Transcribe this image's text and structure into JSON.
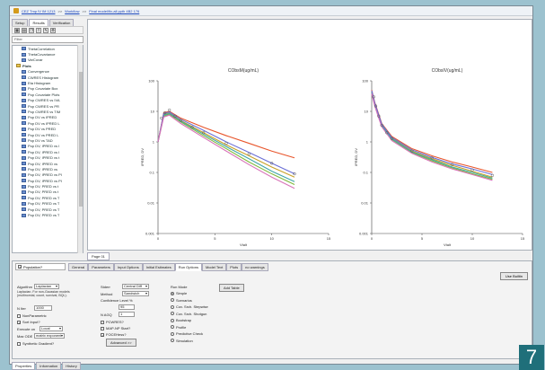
{
  "breadcrumb": [
    "CEZ Tmp IV IM 1213",
    "Workflow",
    "Final model/fiv-all ppth 4B2 176"
  ],
  "top_tabs": [
    "Setup",
    "Results",
    "Verification"
  ],
  "filter_placeholder": "Filter",
  "tree": [
    {
      "label": "ThetaCorrelation",
      "section": false
    },
    {
      "label": "ThetaCovariance",
      "section": false
    },
    {
      "label": "VarCovar",
      "section": false
    },
    {
      "label": "Plots",
      "section": true
    },
    {
      "label": "Convergence",
      "section": false
    },
    {
      "label": "CWRES Histogram",
      "section": false
    },
    {
      "label": "Eta Histogram",
      "section": false
    },
    {
      "label": "Pop Covariate Box",
      "section": false
    },
    {
      "label": "Pop Covariate Plots",
      "section": false
    },
    {
      "label": "Pop CWRES vs IVA",
      "section": false
    },
    {
      "label": "Pop CWRES vs PR",
      "section": false
    },
    {
      "label": "Pop CWRES vs TIM",
      "section": false
    },
    {
      "label": "Pop DV vs IPRED",
      "section": false
    },
    {
      "label": "Pop DV vs IPRED L",
      "section": false
    },
    {
      "label": "Pop DV vs PRED",
      "section": false
    },
    {
      "label": "Pop DV vs PRED L",
      "section": false
    },
    {
      "label": "Pop DV vs TAD",
      "section": false
    },
    {
      "label": "Pop DV, IPRED vs I",
      "section": false
    },
    {
      "label": "Pop DV, IPRED vs I",
      "section": false
    },
    {
      "label": "Pop DV, IPRED vs t",
      "section": false
    },
    {
      "label": "Pop DV, IPRED vs",
      "section": false
    },
    {
      "label": "Pop DV, IPRED vs",
      "section": false
    },
    {
      "label": "Pop DV, IPRED vs PI",
      "section": false
    },
    {
      "label": "Pop DV, IPRED vs PI",
      "section": false
    },
    {
      "label": "Pop DV, PRED vs t",
      "section": false
    },
    {
      "label": "Pop DV, PRED vs t",
      "section": false
    },
    {
      "label": "Pop DV, PRED vs T",
      "section": false
    },
    {
      "label": "Pop DV, PRED vs T",
      "section": false
    },
    {
      "label": "Pop DV, PRED vs T",
      "section": false
    },
    {
      "label": "Pop DV, PRED vs T",
      "section": false
    }
  ],
  "page_tab": "Page 01",
  "chart_data": [
    {
      "type": "line",
      "title": "CObsM(ug/mL)",
      "xlabel": "Vtalt",
      "ylabel": "IPRED, DV",
      "y_scale": "log",
      "xlim": [
        0,
        15
      ],
      "ylim": [
        0.001,
        100
      ],
      "x_ticks": [
        "0",
        "5",
        "10",
        "15"
      ],
      "y_ticks": [
        "0.001",
        "0.01",
        "0.1",
        "1",
        "10",
        "100"
      ],
      "series": [
        {
          "color": "#e8552b",
          "x": [
            0,
            0.5,
            1,
            2,
            4,
            6,
            8,
            10,
            12
          ],
          "y": [
            1,
            9,
            10,
            6,
            3,
            1.6,
            0.9,
            0.5,
            0.3
          ]
        },
        {
          "color": "#c9a227",
          "x": [
            0,
            0.5,
            1,
            2,
            4,
            6,
            8,
            10,
            12
          ],
          "y": [
            1,
            8,
            9,
            5,
            2,
            0.8,
            0.35,
            0.15,
            0.07
          ]
        },
        {
          "color": "#7fb93d",
          "x": [
            0,
            0.5,
            1,
            2,
            4,
            6,
            8,
            10,
            12
          ],
          "y": [
            1,
            7,
            8,
            4.5,
            1.6,
            0.6,
            0.22,
            0.09,
            0.04
          ]
        },
        {
          "color": "#3fa6a6",
          "x": [
            0,
            0.5,
            1,
            2,
            4,
            6,
            8,
            10,
            12
          ],
          "y": [
            1,
            7.5,
            8.5,
            4.8,
            1.8,
            0.7,
            0.28,
            0.11,
            0.05
          ]
        },
        {
          "color": "#6b6fd6",
          "x": [
            0,
            0.5,
            1,
            2,
            4,
            6,
            8,
            10,
            12
          ],
          "y": [
            1,
            8.5,
            9.5,
            5.5,
            2.4,
            1.0,
            0.45,
            0.2,
            0.09
          ]
        },
        {
          "color": "#d873b8",
          "x": [
            0,
            0.5,
            1,
            2,
            4,
            6,
            8,
            10,
            12
          ],
          "y": [
            1,
            6.5,
            7.5,
            4.0,
            1.4,
            0.5,
            0.18,
            0.07,
            0.03
          ]
        }
      ],
      "points": [
        {
          "x": 0.3,
          "y": 6
        },
        {
          "x": 0.6,
          "y": 9
        },
        {
          "x": 1,
          "y": 11
        },
        {
          "x": 1.5,
          "y": 7
        },
        {
          "x": 2,
          "y": 5
        },
        {
          "x": 3,
          "y": 3
        },
        {
          "x": 4,
          "y": 2
        },
        {
          "x": 6,
          "y": 0.9
        },
        {
          "x": 8,
          "y": 0.4
        },
        {
          "x": 10,
          "y": 0.2
        },
        {
          "x": 12,
          "y": 0.09
        }
      ]
    },
    {
      "type": "line",
      "title": "CObsIV(ug/mL)",
      "xlabel": "Vtalt",
      "ylabel": "IPRED, DV",
      "y_scale": "log",
      "xlim": [
        0,
        15
      ],
      "ylim": [
        0.001,
        100
      ],
      "x_ticks": [
        "0",
        "5",
        "10",
        "15"
      ],
      "y_ticks": [
        "0.001",
        "0.01",
        "0.1",
        "1",
        "10",
        "100"
      ],
      "series": [
        {
          "color": "#e8552b",
          "x": [
            0,
            0.3,
            0.7,
            1,
            2,
            4,
            6,
            8,
            10,
            12
          ],
          "y": [
            50,
            20,
            8,
            4,
            1.5,
            0.6,
            0.35,
            0.22,
            0.15,
            0.1
          ]
        },
        {
          "color": "#c9a227",
          "x": [
            0,
            0.3,
            0.7,
            1,
            2,
            4,
            6,
            8,
            10,
            12
          ],
          "y": [
            45,
            18,
            7,
            3.6,
            1.3,
            0.5,
            0.28,
            0.17,
            0.11,
            0.07
          ]
        },
        {
          "color": "#7fb93d",
          "x": [
            0,
            0.3,
            0.7,
            1,
            2,
            4,
            6,
            8,
            10,
            12
          ],
          "y": [
            40,
            16,
            6.5,
            3.3,
            1.2,
            0.45,
            0.24,
            0.14,
            0.09,
            0.06
          ]
        },
        {
          "color": "#3fa6a6",
          "x": [
            0,
            0.3,
            0.7,
            1,
            2,
            4,
            6,
            8,
            10,
            12
          ],
          "y": [
            42,
            17,
            6.8,
            3.4,
            1.25,
            0.47,
            0.26,
            0.15,
            0.1,
            0.065
          ]
        },
        {
          "color": "#6b6fd6",
          "x": [
            0,
            0.3,
            0.7,
            1,
            2,
            4,
            6,
            8,
            10,
            12
          ],
          "y": [
            48,
            19,
            7.5,
            3.8,
            1.4,
            0.55,
            0.31,
            0.19,
            0.13,
            0.085
          ]
        },
        {
          "color": "#d873b8",
          "x": [
            0,
            0.3,
            0.7,
            1,
            2,
            4,
            6,
            8,
            10,
            12
          ],
          "y": [
            38,
            15,
            6,
            3.1,
            1.1,
            0.42,
            0.22,
            0.13,
            0.085,
            0.055
          ]
        }
      ],
      "points": [
        {
          "x": 0.2,
          "y": 30
        },
        {
          "x": 0.4,
          "y": 15
        },
        {
          "x": 0.7,
          "y": 7
        },
        {
          "x": 1,
          "y": 3.5
        },
        {
          "x": 1.5,
          "y": 2
        },
        {
          "x": 2,
          "y": 1.3
        },
        {
          "x": 4,
          "y": 0.5
        },
        {
          "x": 6,
          "y": 0.3
        },
        {
          "x": 8,
          "y": 0.18
        },
        {
          "x": 10,
          "y": 0.12
        },
        {
          "x": 12,
          "y": 0.08
        }
      ]
    }
  ],
  "bottom": {
    "population_label": "Population?",
    "tabs": [
      "General",
      "Parameters",
      "Input Options",
      "Initial Estimates",
      "Run Options",
      "Model Text",
      "Plots",
      "no warnings"
    ],
    "active_tab": "Run Options",
    "use_builtin": "Use Builtin",
    "algorithm_label": "Algorithm",
    "algorithm_value": "Laplacian",
    "algorithm_desc": "Laplacian. For non-Gaussian models (multinomial, count, survival, BQL).",
    "n_iter_label": "N Iter",
    "n_iter_value": "1000",
    "nonparametric_label": "NonParametric",
    "sort_input_label": "Sort Input?",
    "execute_on_label": "Execute on",
    "execute_on_value": "Local",
    "max_ode_label": "Max ODE",
    "max_ode_value": "matrix exponent",
    "synthetic_label": "Synthetic Gradient?",
    "stderr_label": "Stderr",
    "stderr_value": "Central Diff",
    "method_label": "Method",
    "method_value": "Sandwich",
    "confidence_label": "Confidence Level %",
    "confidence_value": "95",
    "nagq_label": "N AGQ",
    "nagq_value": "1",
    "pcwres_label": "PCWRES?",
    "map_np_label": "MAP-NP Start?",
    "foce_hess_label": "FOCEHess?",
    "advanced_label": "Advanced >>",
    "run_mode_label": "Run Mode",
    "run_modes": [
      "Simple",
      "Scenarios",
      "Cov. Srch. Stepwise",
      "Cov. Srch. Shotgun",
      "Bootstrap",
      "Profile",
      "Predictive Check",
      "Simulation"
    ],
    "run_mode_selected": "Simple",
    "add_table": "Add Table"
  },
  "status_tabs": [
    "Properties",
    "Information",
    "History"
  ],
  "badge": "7"
}
